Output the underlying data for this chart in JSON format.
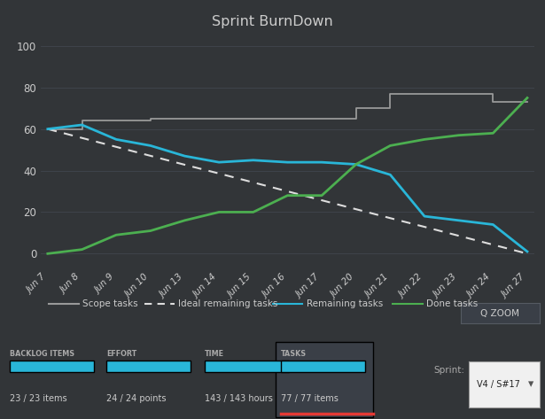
{
  "title": "Sprint BurnDown",
  "background_color": "#323538",
  "plot_bg_color": "#323538",
  "text_color": "#cccccc",
  "x_labels": [
    "Jun 7",
    "Jun 8",
    "Jun 9",
    "Jun 10",
    "Jun 13",
    "Jun 14",
    "Jun 15",
    "Jun 16",
    "Jun 17",
    "Jun 20",
    "Jun 21",
    "Jun 22",
    "Jun 23",
    "Jun 24",
    "Jun 27"
  ],
  "scope_tasks": [
    60,
    64,
    64,
    65,
    65,
    65,
    65,
    65,
    65,
    70,
    77,
    77,
    77,
    73,
    73
  ],
  "ideal_remaining": [
    60,
    55.7,
    51.4,
    47.1,
    42.8,
    38.6,
    34.3,
    30.0,
    25.7,
    21.4,
    17.1,
    12.9,
    8.6,
    4.3,
    0
  ],
  "remaining_tasks": [
    60,
    62,
    55,
    52,
    47,
    44,
    45,
    44,
    44,
    43,
    38,
    18,
    16,
    14,
    1
  ],
  "done_tasks": [
    0,
    2,
    9,
    11,
    16,
    20,
    20,
    28,
    28,
    43,
    52,
    55,
    57,
    58,
    75
  ],
  "scope_color": "#999999",
  "ideal_color": "#dddddd",
  "remaining_color": "#29b6d8",
  "done_color": "#4caf50",
  "ylim": [
    -8,
    108
  ],
  "yticks": [
    0,
    20,
    40,
    60,
    80,
    100
  ],
  "footer_items": [
    {
      "label": "BACKLOG ITEMS",
      "value": "23 / 23 items",
      "highlighted": false
    },
    {
      "label": "EFFORT",
      "value": "24 / 24 points",
      "highlighted": false
    },
    {
      "label": "TIME",
      "value": "143 / 143 hours",
      "highlighted": false
    },
    {
      "label": "TASKS",
      "value": "77 / 77 items",
      "highlighted": true
    }
  ],
  "sprint_label": "Sprint:",
  "sprint_value": "V4 / S#17",
  "zoom_label": "Q ZOOM",
  "bar_color": "#29b6d8",
  "tasks_highlight_bg": "#3a3f47",
  "footer_bg": "#2a2d31",
  "red_line_color": "#e53935",
  "grid_color": "#444a52",
  "zoom_bg": "#3a3f47",
  "zoom_border": "#555a62",
  "sprint_box_bg": "#f0f0f0",
  "sprint_box_text": "#222222"
}
